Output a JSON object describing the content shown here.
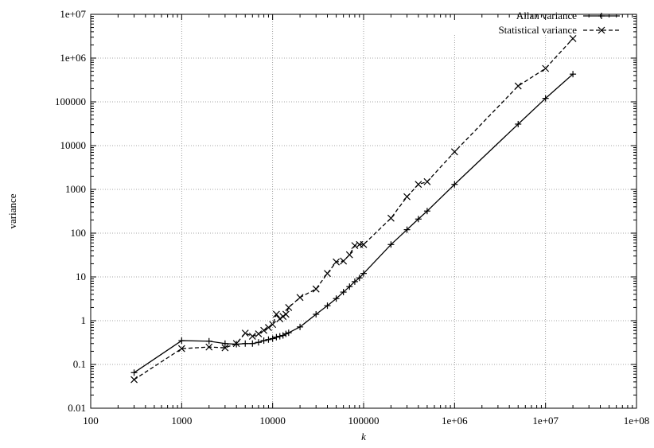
{
  "chart_data": {
    "type": "line",
    "xlabel": "k",
    "ylabel": "variance",
    "xscale": "log",
    "yscale": "log",
    "xlim": [
      100,
      100000000
    ],
    "ylim": [
      0.01,
      10000000
    ],
    "x_ticks": [
      100,
      1000,
      10000,
      100000,
      1000000,
      10000000,
      100000000
    ],
    "x_tick_labels": [
      "100",
      "1000",
      "10000",
      "100000",
      "1e+06",
      "1e+07",
      "1e+08"
    ],
    "y_ticks": [
      0.01,
      0.1,
      1,
      10,
      100,
      1000,
      10000,
      100000,
      1000000,
      10000000
    ],
    "y_tick_labels": [
      "0.01",
      "0.1",
      "1",
      "10",
      "100",
      "1000",
      "10000",
      "100000",
      "1e+06",
      "1e+07"
    ],
    "grid": true,
    "legend_position": "top-right",
    "series": [
      {
        "name": "Allan variance",
        "line_style": "solid",
        "marker": "plus",
        "color": "#000000",
        "points": [
          [
            300,
            0.065
          ],
          [
            1000,
            0.35
          ],
          [
            2000,
            0.34
          ],
          [
            3000,
            0.3
          ],
          [
            4000,
            0.29
          ],
          [
            5000,
            0.3
          ],
          [
            6000,
            0.3
          ],
          [
            7000,
            0.32
          ],
          [
            8000,
            0.35
          ],
          [
            9000,
            0.37
          ],
          [
            10000,
            0.39
          ],
          [
            11000,
            0.42
          ],
          [
            12000,
            0.44
          ],
          [
            13000,
            0.46
          ],
          [
            14000,
            0.5
          ],
          [
            15000,
            0.53
          ],
          [
            20000,
            0.72
          ],
          [
            30000,
            1.4
          ],
          [
            40000,
            2.2
          ],
          [
            50000,
            3.2
          ],
          [
            60000,
            4.5
          ],
          [
            70000,
            6
          ],
          [
            80000,
            7.8
          ],
          [
            90000,
            9.5
          ],
          [
            100000,
            12
          ],
          [
            200000,
            55
          ],
          [
            300000,
            120
          ],
          [
            400000,
            210
          ],
          [
            500000,
            320
          ],
          [
            1000000,
            1300
          ],
          [
            5000000,
            31000
          ],
          [
            10000000,
            120000
          ],
          [
            20000000,
            430000
          ]
        ]
      },
      {
        "name": "Statistical variance",
        "line_style": "dashed",
        "marker": "cross",
        "color": "#000000",
        "points": [
          [
            300,
            0.045
          ],
          [
            1000,
            0.23
          ],
          [
            2000,
            0.25
          ],
          [
            3000,
            0.24
          ],
          [
            4000,
            0.3
          ],
          [
            5000,
            0.52
          ],
          [
            6000,
            0.44
          ],
          [
            7000,
            0.5
          ],
          [
            8000,
            0.6
          ],
          [
            9000,
            0.7
          ],
          [
            10000,
            0.82
          ],
          [
            11000,
            1.4
          ],
          [
            12000,
            1.1
          ],
          [
            13000,
            1.25
          ],
          [
            14000,
            1.4
          ],
          [
            15000,
            2
          ],
          [
            20000,
            3.4
          ],
          [
            30000,
            5.3
          ],
          [
            40000,
            12
          ],
          [
            50000,
            22
          ],
          [
            60000,
            23
          ],
          [
            70000,
            32
          ],
          [
            80000,
            52
          ],
          [
            90000,
            55
          ],
          [
            100000,
            55
          ],
          [
            200000,
            220
          ],
          [
            300000,
            680
          ],
          [
            400000,
            1300
          ],
          [
            500000,
            1500
          ],
          [
            1000000,
            7200
          ],
          [
            5000000,
            230000
          ],
          [
            10000000,
            580000
          ],
          [
            20000000,
            2800000
          ]
        ]
      }
    ]
  }
}
